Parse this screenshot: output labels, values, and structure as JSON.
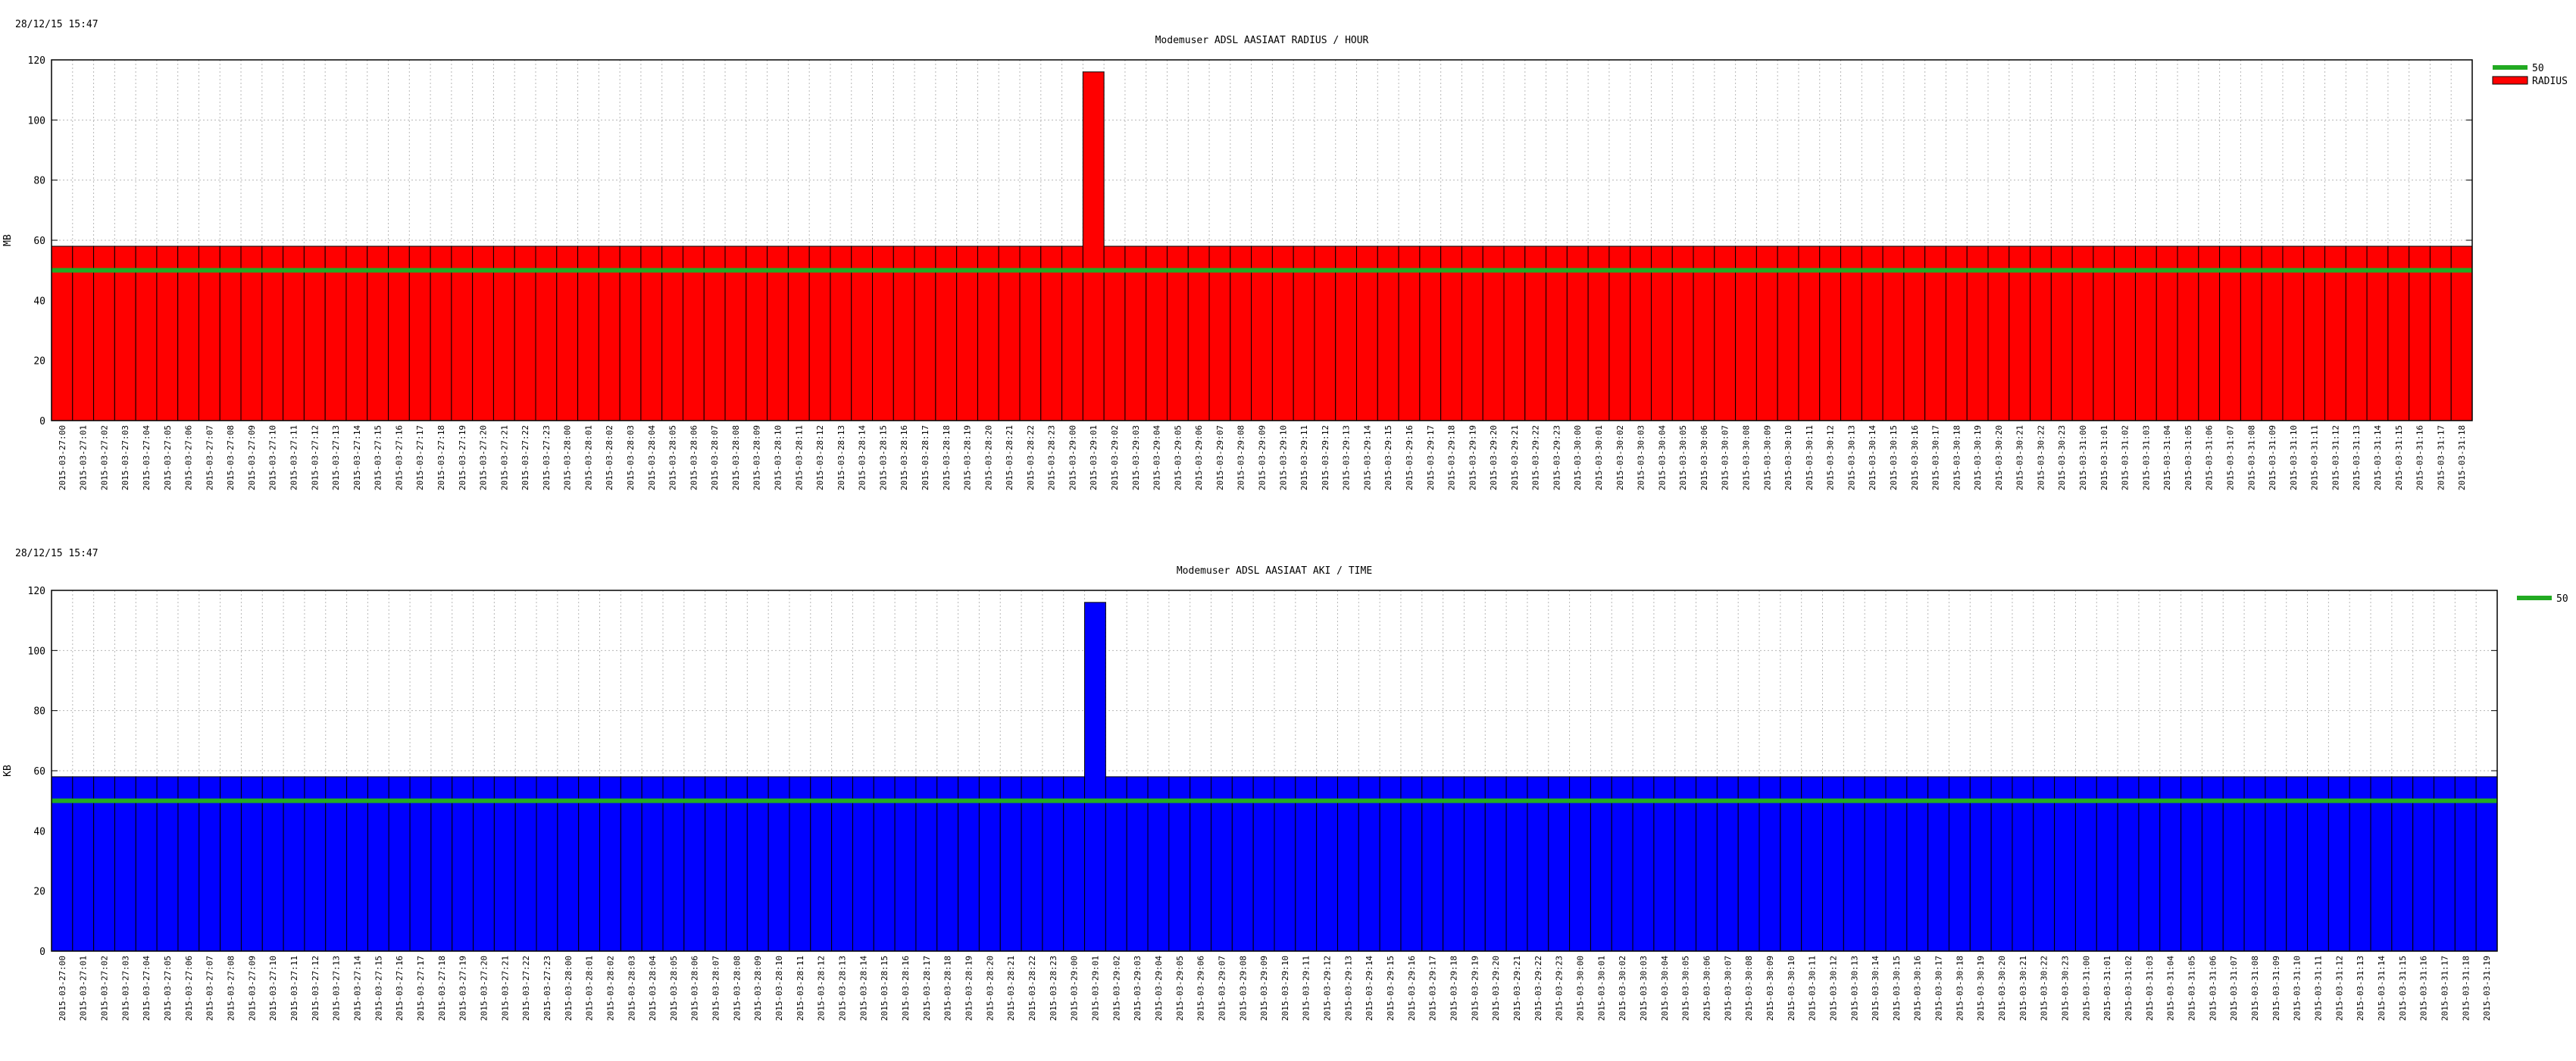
{
  "chart_data": [
    {
      "type": "bar",
      "timestamp": "28/12/15 15:47",
      "title": "Modemuser ADSL AASIAAT RADIUS / HOUR",
      "ylabel": "MB",
      "ylim": [
        0,
        120
      ],
      "yticks": [
        0,
        20,
        40,
        60,
        80,
        100,
        120
      ],
      "grid": true,
      "legend_position": "top-right",
      "categories": [
        "2015-03-27:00",
        "2015-03-27:01",
        "2015-03-27:02",
        "2015-03-27:03",
        "2015-03-27:04",
        "2015-03-27:05",
        "2015-03-27:06",
        "2015-03-27:07",
        "2015-03-27:08",
        "2015-03-27:09",
        "2015-03-27:10",
        "2015-03-27:11",
        "2015-03-27:12",
        "2015-03-27:13",
        "2015-03-27:14",
        "2015-03-27:15",
        "2015-03-27:16",
        "2015-03-27:17",
        "2015-03-27:18",
        "2015-03-27:19",
        "2015-03-27:20",
        "2015-03-27:21",
        "2015-03-27:22",
        "2015-03-27:23",
        "2015-03-28:00",
        "2015-03-28:01",
        "2015-03-28:02",
        "2015-03-28:03",
        "2015-03-28:04",
        "2015-03-28:05",
        "2015-03-28:06",
        "2015-03-28:07",
        "2015-03-28:08",
        "2015-03-28:09",
        "2015-03-28:10",
        "2015-03-28:11",
        "2015-03-28:12",
        "2015-03-28:13",
        "2015-03-28:14",
        "2015-03-28:15",
        "2015-03-28:16",
        "2015-03-28:17",
        "2015-03-28:18",
        "2015-03-28:19",
        "2015-03-28:20",
        "2015-03-28:21",
        "2015-03-28:22",
        "2015-03-28:23",
        "2015-03-29:00",
        "2015-03-29:01",
        "2015-03-29:02",
        "2015-03-29:03",
        "2015-03-29:04",
        "2015-03-29:05",
        "2015-03-29:06",
        "2015-03-29:07",
        "2015-03-29:08",
        "2015-03-29:09",
        "2015-03-29:10",
        "2015-03-29:11",
        "2015-03-29:12",
        "2015-03-29:13",
        "2015-03-29:14",
        "2015-03-29:15",
        "2015-03-29:16",
        "2015-03-29:17",
        "2015-03-29:18",
        "2015-03-29:19",
        "2015-03-29:20",
        "2015-03-29:21",
        "2015-03-29:22",
        "2015-03-29:23",
        "2015-03-30:00",
        "2015-03-30:01",
        "2015-03-30:02",
        "2015-03-30:03",
        "2015-03-30:04",
        "2015-03-30:05",
        "2015-03-30:06",
        "2015-03-30:07",
        "2015-03-30:08",
        "2015-03-30:09",
        "2015-03-30:10",
        "2015-03-30:11",
        "2015-03-30:12",
        "2015-03-30:13",
        "2015-03-30:14",
        "2015-03-30:15",
        "2015-03-30:16",
        "2015-03-30:17",
        "2015-03-30:18",
        "2015-03-30:19",
        "2015-03-30:20",
        "2015-03-30:21",
        "2015-03-30:22",
        "2015-03-30:23",
        "2015-03-31:00",
        "2015-03-31:01",
        "2015-03-31:02",
        "2015-03-31:03",
        "2015-03-31:04",
        "2015-03-31:05",
        "2015-03-31:06",
        "2015-03-31:07",
        "2015-03-31:08",
        "2015-03-31:09",
        "2015-03-31:10",
        "2015-03-31:11",
        "2015-03-31:12",
        "2015-03-31:13",
        "2015-03-31:14",
        "2015-03-31:15",
        "2015-03-31:16",
        "2015-03-31:17",
        "2015-03-31:18"
      ],
      "base_value": 58,
      "spike": {
        "category": "2015-03-29:01",
        "value": 116
      },
      "series": [
        {
          "name": "RADIUS",
          "kind": "bar",
          "color": "#ff0000"
        },
        {
          "name": "50",
          "kind": "line",
          "value": 50,
          "color": "#22aa22"
        }
      ]
    },
    {
      "type": "bar",
      "timestamp": "28/12/15 15:47",
      "title": "Modemuser ADSL AASIAAT  AKI / TIME",
      "ylabel": "KB",
      "ylim": [
        0,
        120
      ],
      "yticks": [
        0,
        20,
        40,
        60,
        80,
        100,
        120
      ],
      "grid": true,
      "legend_position": "top-right",
      "categories": [
        "2015-03-27:00",
        "2015-03-27:01",
        "2015-03-27:02",
        "2015-03-27:03",
        "2015-03-27:04",
        "2015-03-27:05",
        "2015-03-27:06",
        "2015-03-27:07",
        "2015-03-27:08",
        "2015-03-27:09",
        "2015-03-27:10",
        "2015-03-27:11",
        "2015-03-27:12",
        "2015-03-27:13",
        "2015-03-27:14",
        "2015-03-27:15",
        "2015-03-27:16",
        "2015-03-27:17",
        "2015-03-27:18",
        "2015-03-27:19",
        "2015-03-27:20",
        "2015-03-27:21",
        "2015-03-27:22",
        "2015-03-27:23",
        "2015-03-28:00",
        "2015-03-28:01",
        "2015-03-28:02",
        "2015-03-28:03",
        "2015-03-28:04",
        "2015-03-28:05",
        "2015-03-28:06",
        "2015-03-28:07",
        "2015-03-28:08",
        "2015-03-28:09",
        "2015-03-28:10",
        "2015-03-28:11",
        "2015-03-28:12",
        "2015-03-28:13",
        "2015-03-28:14",
        "2015-03-28:15",
        "2015-03-28:16",
        "2015-03-28:17",
        "2015-03-28:18",
        "2015-03-28:19",
        "2015-03-28:20",
        "2015-03-28:21",
        "2015-03-28:22",
        "2015-03-28:23",
        "2015-03-29:00",
        "2015-03-29:01",
        "2015-03-29:02",
        "2015-03-29:03",
        "2015-03-29:04",
        "2015-03-29:05",
        "2015-03-29:06",
        "2015-03-29:07",
        "2015-03-29:08",
        "2015-03-29:09",
        "2015-03-29:10",
        "2015-03-29:11",
        "2015-03-29:12",
        "2015-03-29:13",
        "2015-03-29:14",
        "2015-03-29:15",
        "2015-03-29:16",
        "2015-03-29:17",
        "2015-03-29:18",
        "2015-03-29:19",
        "2015-03-29:20",
        "2015-03-29:21",
        "2015-03-29:22",
        "2015-03-29:23",
        "2015-03-30:00",
        "2015-03-30:01",
        "2015-03-30:02",
        "2015-03-30:03",
        "2015-03-30:04",
        "2015-03-30:05",
        "2015-03-30:06",
        "2015-03-30:07",
        "2015-03-30:08",
        "2015-03-30:09",
        "2015-03-30:10",
        "2015-03-30:11",
        "2015-03-30:12",
        "2015-03-30:13",
        "2015-03-30:14",
        "2015-03-30:15",
        "2015-03-30:16",
        "2015-03-30:17",
        "2015-03-30:18",
        "2015-03-30:19",
        "2015-03-30:20",
        "2015-03-30:21",
        "2015-03-30:22",
        "2015-03-30:23",
        "2015-03-31:00",
        "2015-03-31:01",
        "2015-03-31:02",
        "2015-03-31:03",
        "2015-03-31:04",
        "2015-03-31:05",
        "2015-03-31:06",
        "2015-03-31:07",
        "2015-03-31:08",
        "2015-03-31:09",
        "2015-03-31:10",
        "2015-03-31:11",
        "2015-03-31:12",
        "2015-03-31:13",
        "2015-03-31:14",
        "2015-03-31:15",
        "2015-03-31:16",
        "2015-03-31:17",
        "2015-03-31:18",
        "2015-03-31:19"
      ],
      "base_value": 58,
      "spike": {
        "category": "2015-03-29:01",
        "value": 116
      },
      "series": [
        {
          "name": "",
          "kind": "bar",
          "color": "#0000ff"
        },
        {
          "name": "50",
          "kind": "line",
          "value": 50,
          "color": "#22aa22"
        }
      ]
    }
  ]
}
